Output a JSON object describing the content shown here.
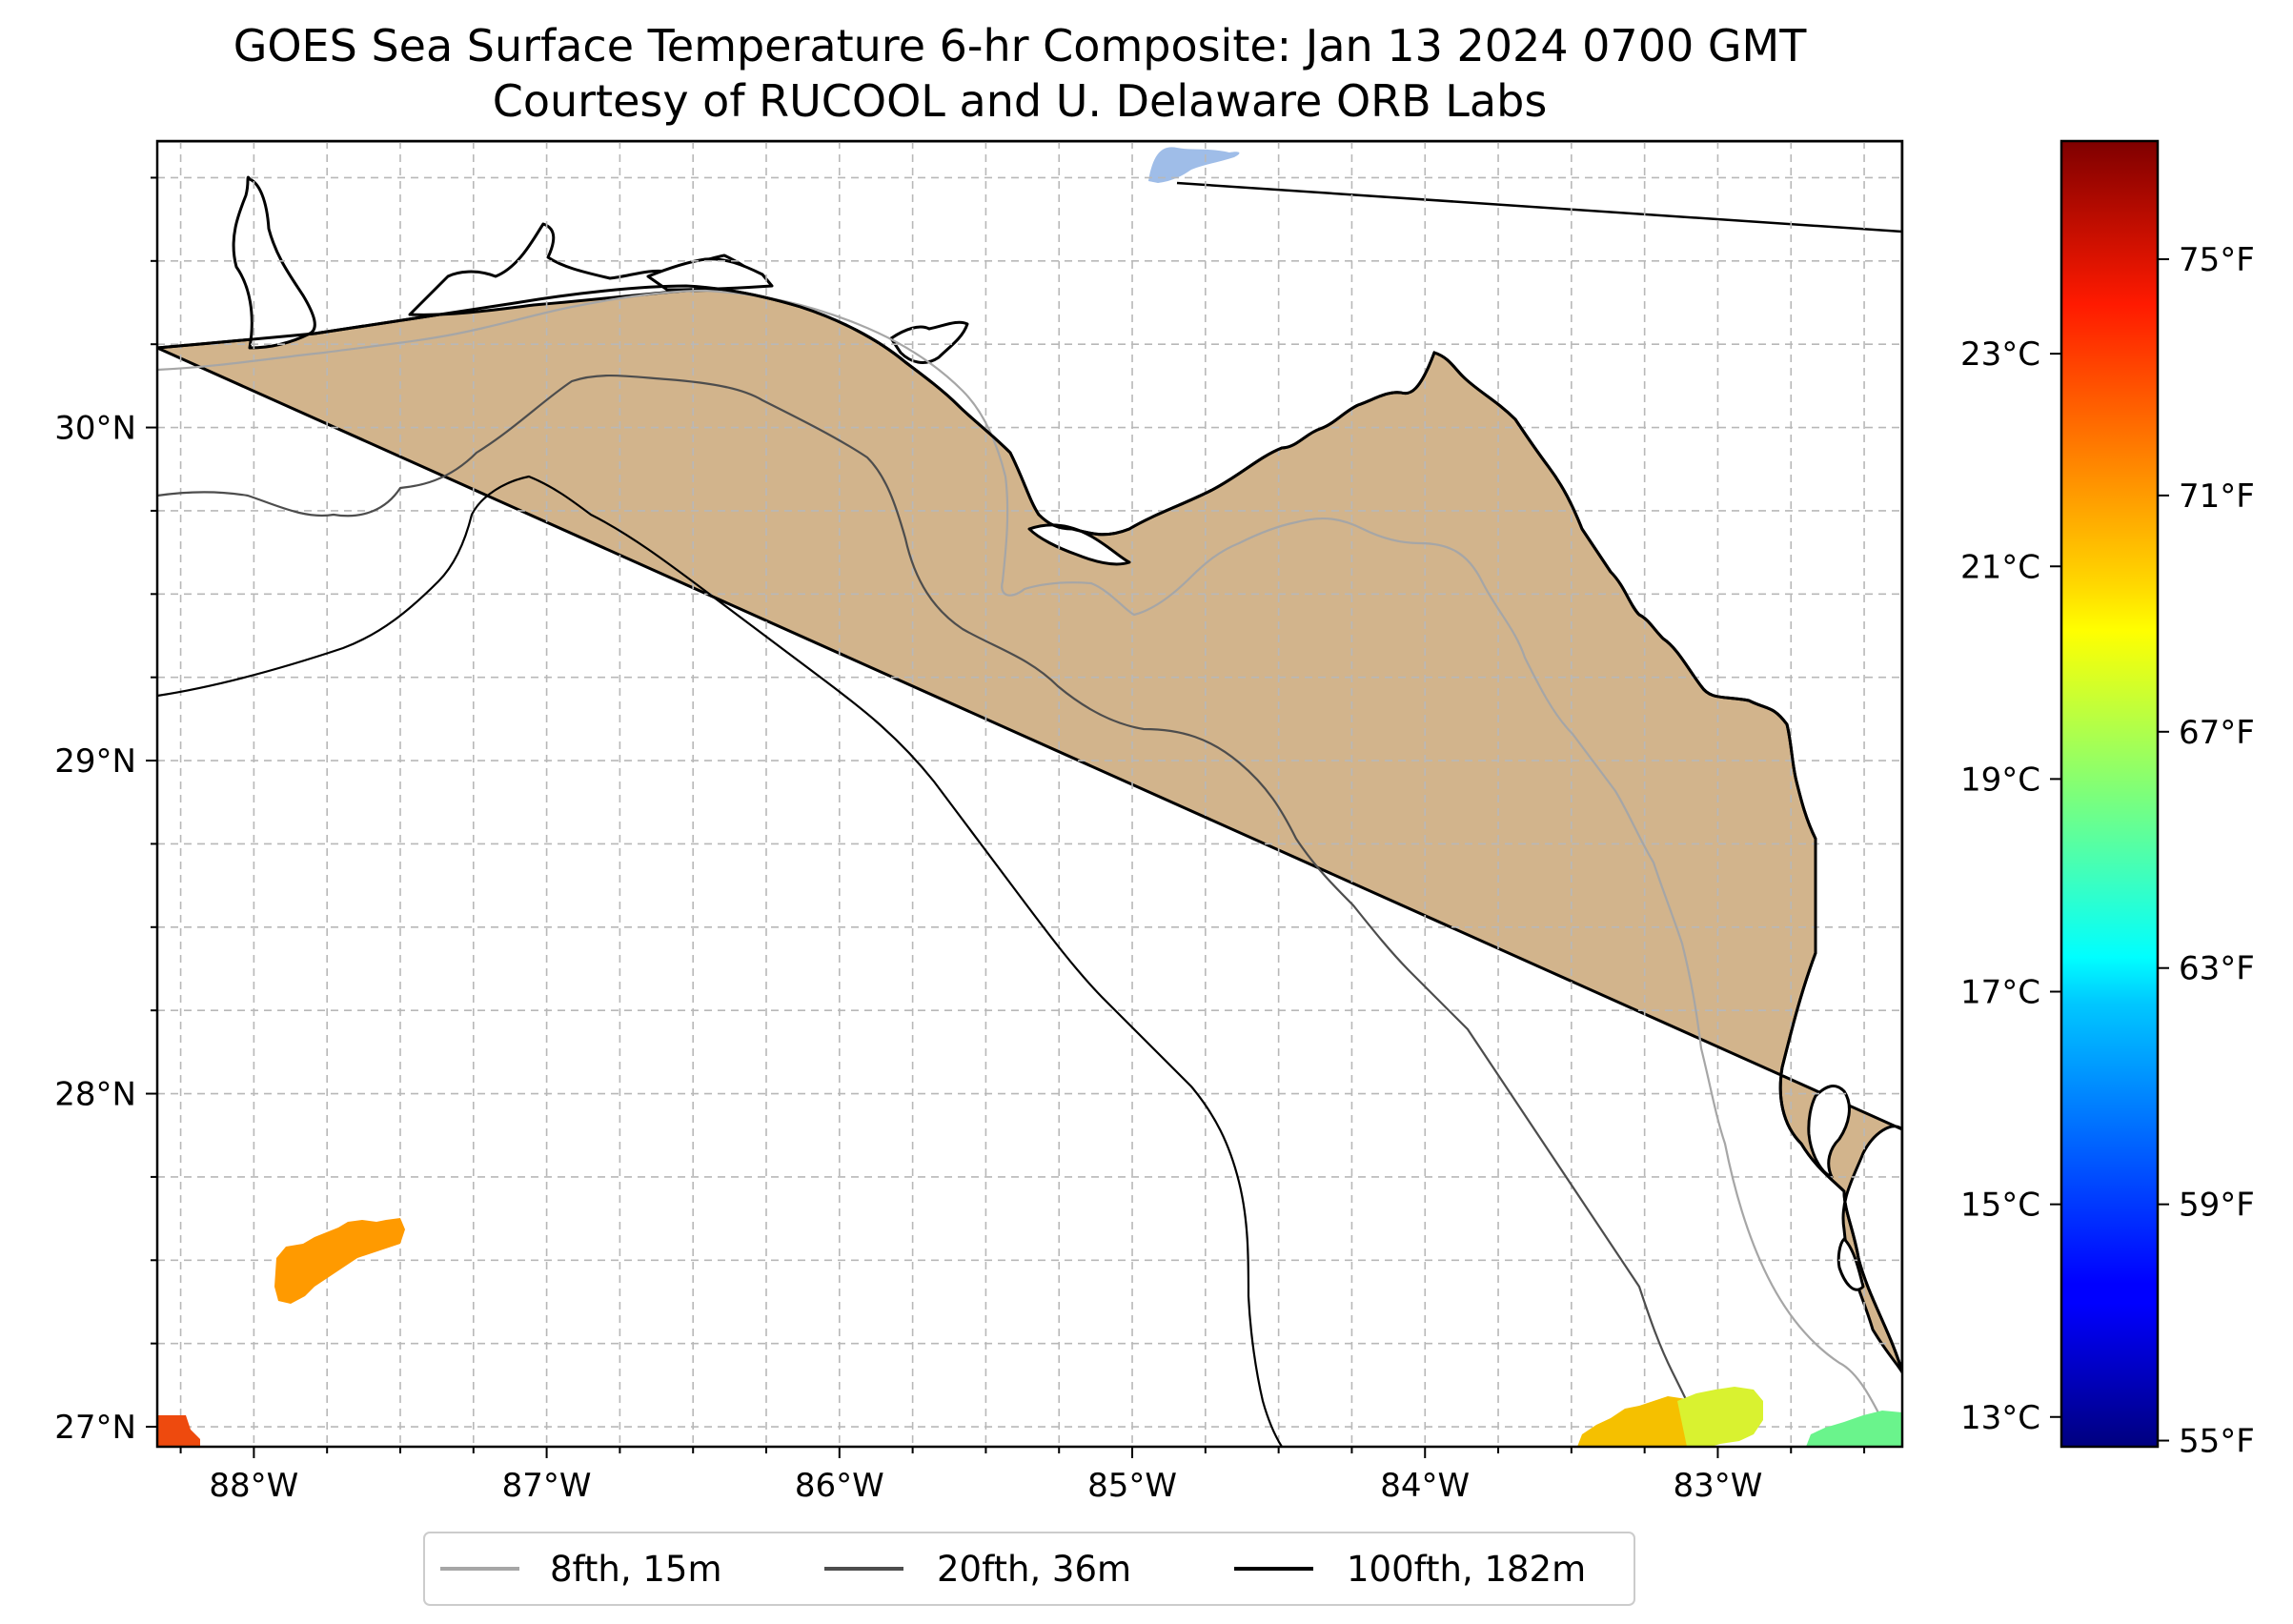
{
  "title": {
    "line1": "GOES Sea Surface Temperature 6-hr Composite: Jan 13 2024 0700 GMT",
    "line2": "Courtesy of RUCOOL and U. Delaware ORB Labs"
  },
  "map": {
    "lon_range": [
      -88.33,
      -82.37
    ],
    "lat_range": [
      26.94,
      30.86
    ],
    "land_color": "#d2b48c",
    "water_color": "#ffffff",
    "lake_color": "#9fbde8",
    "grid": true,
    "lon_ticks": [
      "88°W",
      "87°W",
      "86°W",
      "85°W",
      "84°W",
      "83°W"
    ],
    "lat_ticks": [
      "27°N",
      "28°N",
      "29°N",
      "30°N"
    ]
  },
  "legend": {
    "placement": "bottom-center",
    "items": [
      {
        "label": "8fth, 15m",
        "color": "#a6a6a6"
      },
      {
        "label": "20fth, 36m",
        "color": "#4d4d4d"
      },
      {
        "label": "100fth, 182m",
        "color": "#000000"
      }
    ]
  },
  "colorbar": {
    "colormap": "jet",
    "celsius_labels": [
      "23°C",
      "21°C",
      "19°C",
      "17°C",
      "15°C",
      "13°C"
    ],
    "fahrenheit_labels": [
      "75°F",
      "71°F",
      "67°F",
      "63°F",
      "59°F",
      "55°F"
    ]
  },
  "sst_patches": [
    {
      "area": "offshore west",
      "color": "#ff9a00"
    },
    {
      "area": "southwest corner",
      "color": "#ee4a0e"
    },
    {
      "area": "south near 83°W",
      "color": "#f5c000"
    },
    {
      "area": "south near 82.9°W",
      "color": "#d9f230"
    },
    {
      "area": "southeast corner",
      "color": "#6af48c"
    }
  ]
}
